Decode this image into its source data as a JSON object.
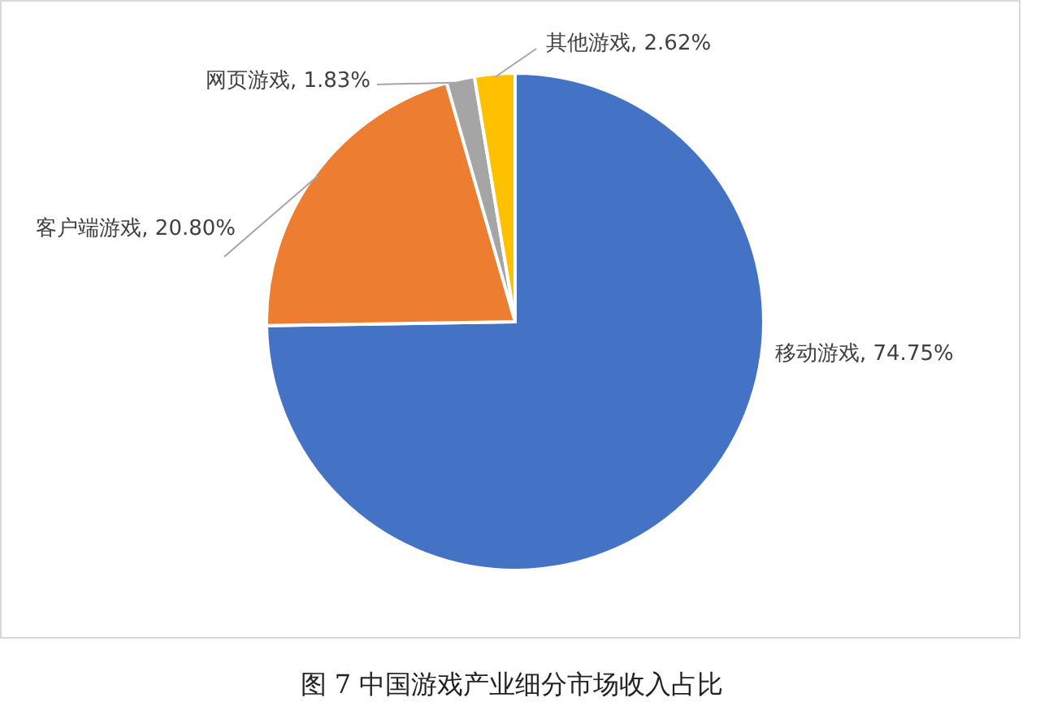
{
  "chart_data": {
    "type": "pie",
    "title": "图 7 中国游戏产业细分市场收入占比",
    "categories": [
      "移动游戏",
      "客户端游戏",
      "网页游戏",
      "其他游戏"
    ],
    "values": [
      74.75,
      20.8,
      1.83,
      2.62
    ],
    "colors": [
      "#4472c4",
      "#ed7d31",
      "#a5a5a5",
      "#ffc000"
    ],
    "value_labels": [
      "74.75%",
      "20.80%",
      "1.83%",
      "2.62%"
    ]
  }
}
